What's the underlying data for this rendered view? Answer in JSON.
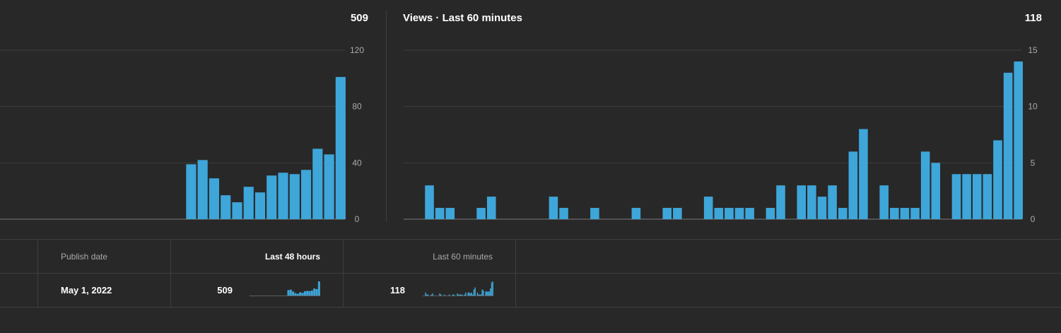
{
  "colors": {
    "bar": "#3ea6d9",
    "background": "#282828",
    "grid": "#3e3e3e",
    "axis_text": "#aaaaaa"
  },
  "chart_48h": {
    "total": "509",
    "chart_data": {
      "type": "bar",
      "title": "",
      "ylim": [
        0,
        120
      ],
      "y_ticks": [
        "0",
        "40",
        "80",
        "120"
      ],
      "values": [
        0,
        0,
        0,
        0,
        0,
        0,
        0,
        0,
        0,
        0,
        0,
        0,
        0,
        0,
        0,
        0,
        39,
        42,
        29,
        17,
        12,
        23,
        19,
        31,
        33,
        32,
        35,
        50,
        46,
        101
      ]
    }
  },
  "chart_60m": {
    "title": "Views · Last 60 minutes",
    "total": "118",
    "chart_data": {
      "type": "bar",
      "title": "Views · Last 60 minutes",
      "ylim": [
        0,
        15
      ],
      "y_ticks": [
        "0",
        "5",
        "10",
        "15"
      ],
      "values": [
        0,
        0,
        3,
        1,
        1,
        0,
        0,
        1,
        2,
        0,
        0,
        0,
        0,
        0,
        2,
        1,
        0,
        0,
        1,
        0,
        0,
        0,
        1,
        0,
        0,
        1,
        1,
        0,
        0,
        2,
        1,
        1,
        1,
        1,
        0,
        1,
        3,
        0,
        3,
        3,
        2,
        3,
        1,
        6,
        8,
        0,
        3,
        1,
        1,
        1,
        6,
        5,
        0,
        4,
        4,
        4,
        4,
        7,
        13,
        14
      ]
    }
  },
  "table": {
    "headers": {
      "publish_date": "Publish date",
      "last_48_hours": "Last 48 hours",
      "last_60_minutes": "Last 60 minutes"
    },
    "row": {
      "publish_date": "May 1, 2022",
      "last_48_hours": "509",
      "last_60_minutes": "118"
    }
  }
}
